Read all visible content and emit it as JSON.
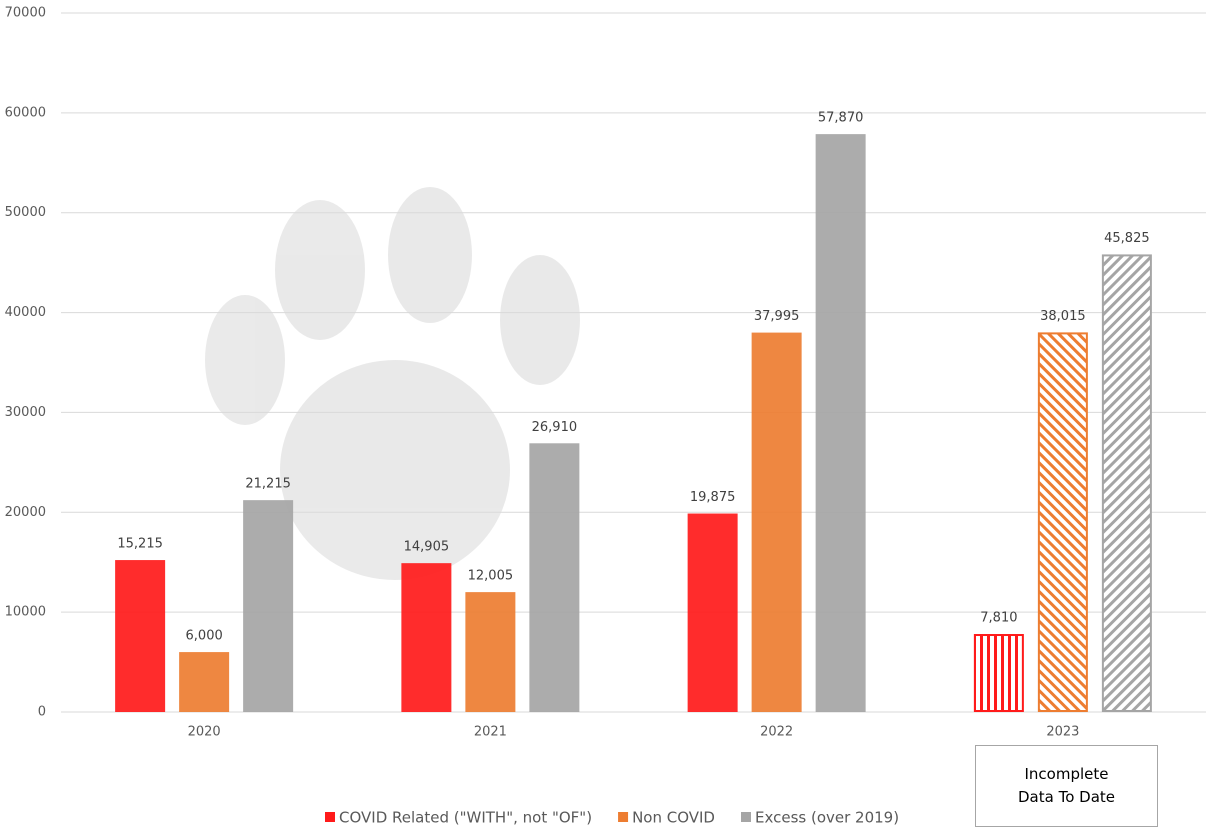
{
  "chart_data": {
    "type": "bar",
    "categories": [
      "2020",
      "2021",
      "2022",
      "2023"
    ],
    "series": [
      {
        "name": "COVID Related (\"WITH\", not \"OF\")",
        "color": "#ff1a1a",
        "hatch": "vertical",
        "values": [
          15215,
          14905,
          19875,
          7810
        ],
        "value_labels": [
          "15,215",
          "14,905",
          "19,875",
          "7,810"
        ]
      },
      {
        "name": "Non COVID",
        "color": "#ed7d31",
        "hatch": "diagonal-down",
        "values": [
          6000,
          12005,
          37995,
          38015
        ],
        "value_labels": [
          "6,000",
          "12,005",
          "37,995",
          "38,015"
        ]
      },
      {
        "name": "Excess (over 2019)",
        "color": "#a5a5a5",
        "hatch": "diagonal-up",
        "values": [
          21215,
          26910,
          57870,
          45825
        ],
        "value_labels": [
          "21,215",
          "26,910",
          "57,870",
          "45,825"
        ]
      }
    ],
    "hatched": [
      false,
      false,
      false,
      true
    ],
    "annotation": "Incomplete Data To Date",
    "ylim": [
      0,
      70000
    ],
    "yticks": [
      0,
      10000,
      20000,
      30000,
      40000,
      50000,
      60000,
      70000
    ],
    "grid": true,
    "legend": "bottom"
  }
}
